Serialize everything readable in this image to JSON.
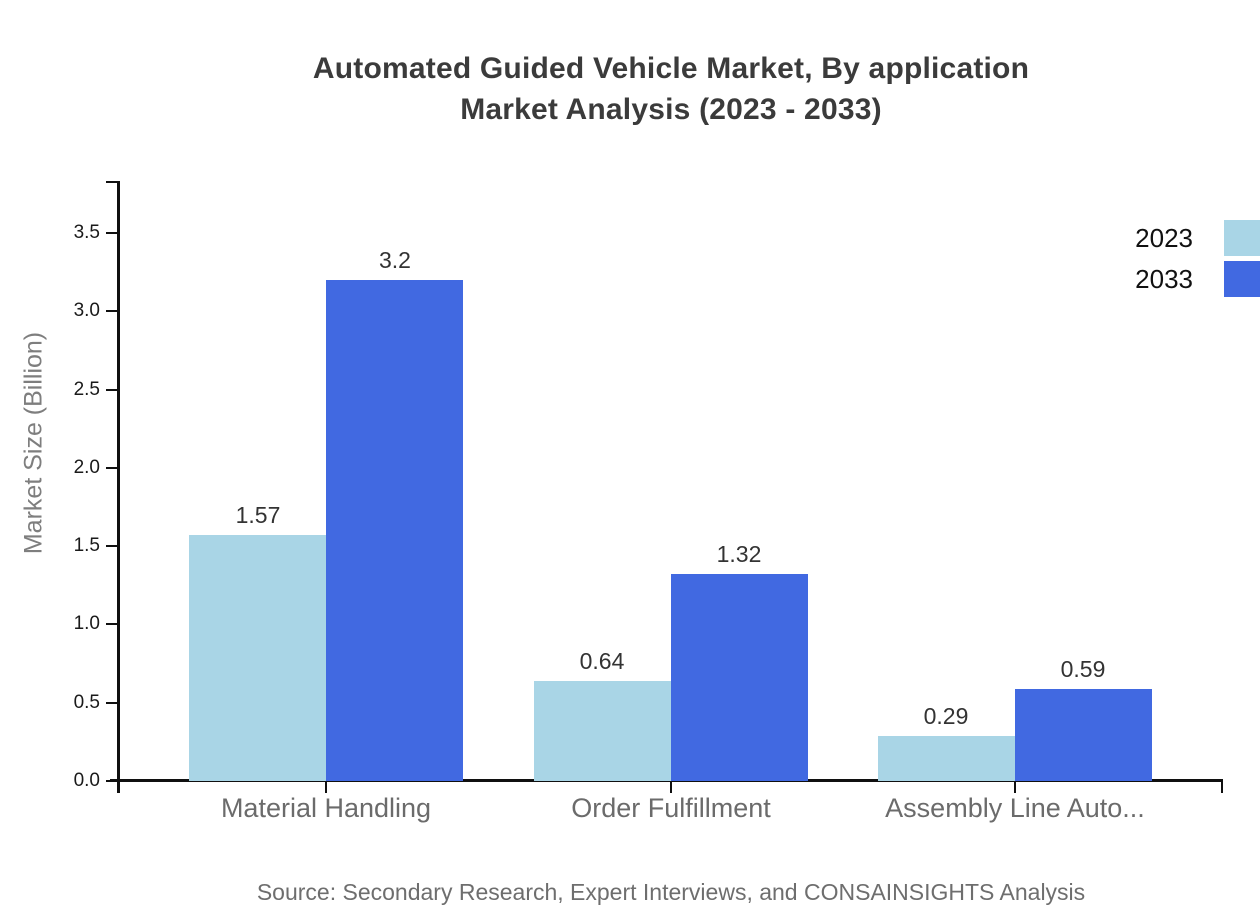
{
  "title": {
    "line1": "Automated Guided Vehicle Market, By application",
    "line2": "Market Analysis (2023 - 2033)"
  },
  "source_note": "Source: Secondary Research, Expert Interviews, and CONSAINSIGHTS Analysis",
  "legend": {
    "items": [
      {
        "label": "2023",
        "color": "#a9d5e6"
      },
      {
        "label": "2033",
        "color": "#4169e1"
      }
    ]
  },
  "chart_data": {
    "type": "bar",
    "title": "Automated Guided Vehicle Market, By application Market Analysis (2023 - 2033)",
    "categories": [
      "Material Handling",
      "Order Fulfillment",
      "Assembly Line Auto..."
    ],
    "series": [
      {
        "name": "2023",
        "color": "#a9d5e6",
        "values": [
          1.57,
          0.64,
          0.29
        ]
      },
      {
        "name": "2033",
        "color": "#4169e1",
        "values": [
          3.2,
          1.32,
          0.59
        ]
      }
    ],
    "value_labels": [
      "1.57",
      "0.64",
      "0.29",
      "3.2",
      "1.32",
      "0.59"
    ],
    "xlabel": "",
    "ylabel": "Market Size (Billion)",
    "ylim": [
      0,
      3.83
    ],
    "yticks": [
      0.0,
      0.5,
      1.0,
      1.5,
      2.0,
      2.5,
      3.0,
      3.5
    ],
    "ytick_labels": [
      "0.0",
      "0.5",
      "1.0",
      "1.5",
      "2.0",
      "2.5",
      "3.0",
      "3.5"
    ],
    "grid": false,
    "legend_position": "top-right",
    "axis_color": "#101010",
    "tick_label_color": "#1a1a1a",
    "category_label_color": "#6b6b6b",
    "value_label_color": "#333333"
  }
}
